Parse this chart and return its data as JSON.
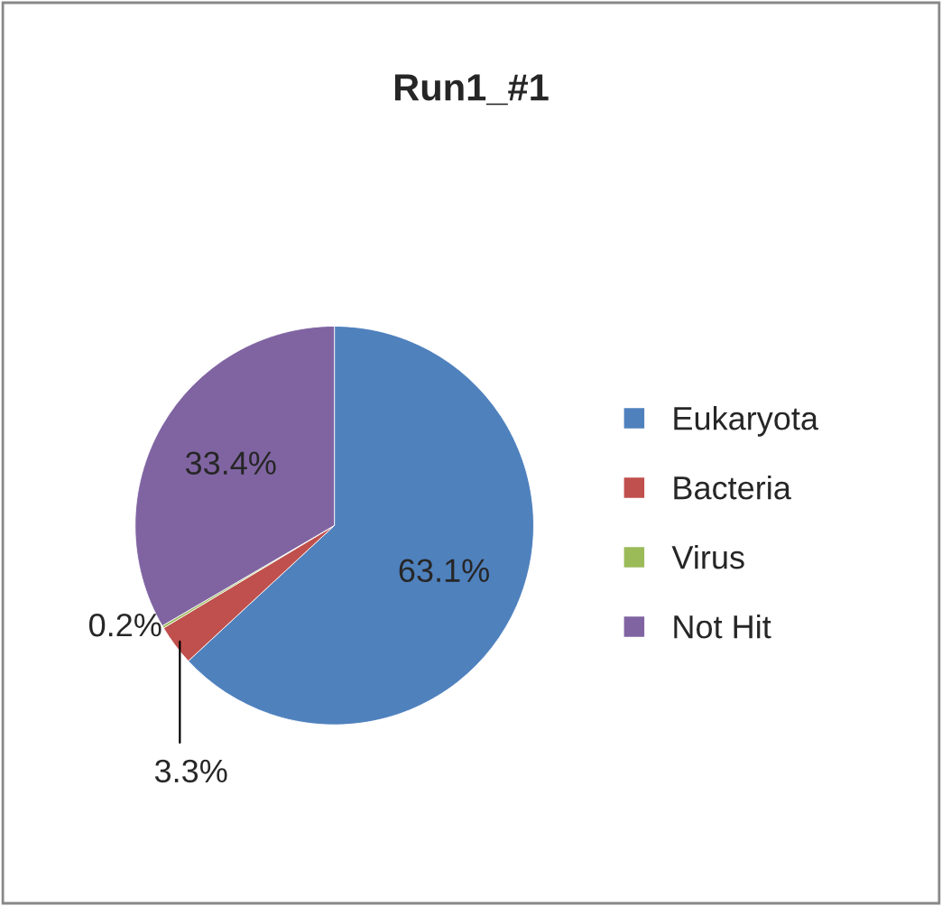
{
  "chart_data": {
    "type": "pie",
    "title": "Run1_#1",
    "categories": [
      "Eukaryota",
      "Bacteria",
      "Virus",
      "Not Hit"
    ],
    "values": [
      63.1,
      3.3,
      0.2,
      33.4
    ],
    "colors": [
      "#4f81bd",
      "#c0504d",
      "#9bbb59",
      "#8064a2"
    ],
    "value_labels": [
      "63.1%",
      "3.3%",
      "0.2%",
      "33.4%"
    ],
    "legend": "right"
  }
}
